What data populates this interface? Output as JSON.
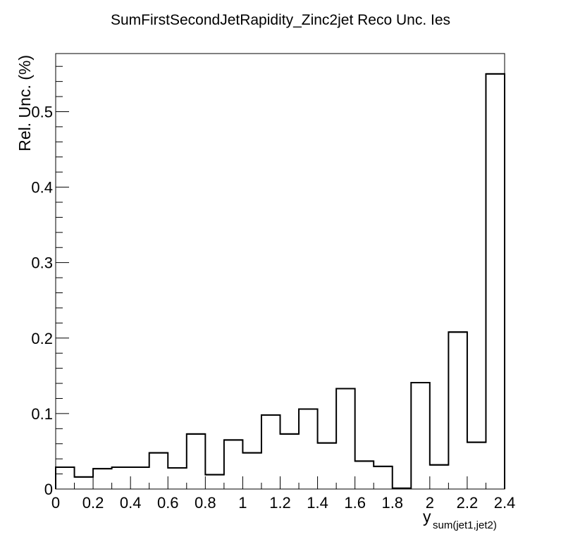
{
  "chart_data": {
    "type": "histogram",
    "title": "SumFirstSecondJetRapidity_Zinc2jet Reco Unc. Ies",
    "xlabel_main": "y",
    "xlabel_sub": "sum(jet1,jet2)",
    "ylabel": "Rel. Unc. (%)",
    "xlim": [
      0,
      2.4
    ],
    "ylim": [
      0,
      0.577
    ],
    "x_ticks": [
      "0",
      "0.2",
      "0.4",
      "0.6",
      "0.8",
      "1",
      "1.2",
      "1.4",
      "1.6",
      "1.8",
      "2",
      "2.2",
      "2.4"
    ],
    "y_ticks": [
      "0",
      "0.1",
      "0.2",
      "0.3",
      "0.4",
      "0.5"
    ],
    "bin_edges": [
      0,
      0.1,
      0.2,
      0.3,
      0.4,
      0.5,
      0.6,
      0.7,
      0.8,
      0.9,
      1.0,
      1.1,
      1.2,
      1.3,
      1.4,
      1.5,
      1.6,
      1.7,
      1.8,
      1.9,
      2.0,
      2.1,
      2.2,
      2.3,
      2.4
    ],
    "values": [
      0.029,
      0.016,
      0.027,
      0.029,
      0.029,
      0.048,
      0.028,
      0.073,
      0.019,
      0.065,
      0.048,
      0.098,
      0.073,
      0.106,
      0.061,
      0.133,
      0.037,
      0.03,
      0.001,
      0.141,
      0.032,
      0.208,
      0.062,
      0.55
    ],
    "grid": false,
    "line_color": "#000000"
  }
}
